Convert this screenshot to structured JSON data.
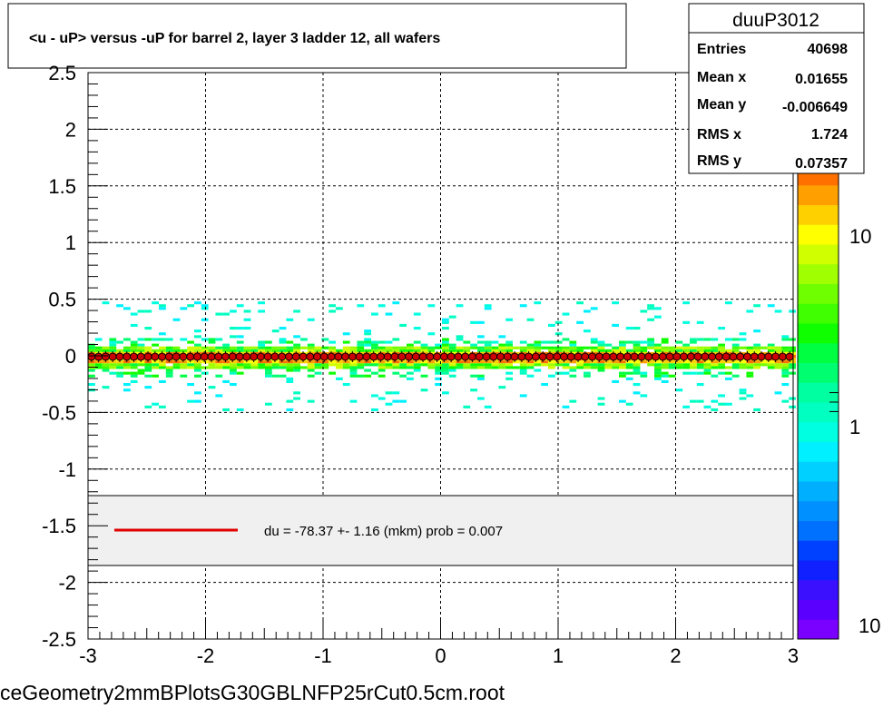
{
  "title": "<u - uP>       versus  -uP for barrel 2, layer 3 ladder 12, all wafers",
  "footer_filename": "ceGeometry2mmBPlotsG30GBLNFP25rCut0.5cm.root",
  "stats": {
    "name": "duuP3012",
    "rows": [
      {
        "label": "Entries",
        "value": "40698"
      },
      {
        "label": "Mean x",
        "value": "0.01655"
      },
      {
        "label": "Mean y",
        "value": "-0.006649"
      },
      {
        "label": "RMS x",
        "value": "1.724"
      },
      {
        "label": "RMS y",
        "value": "0.07357"
      }
    ]
  },
  "fit_legend": {
    "text": "du =  -78.37 +-  1.16 (mkm) prob = 0.007",
    "line_color": "#e00000"
  },
  "chart_data": {
    "type": "heatmap",
    "xlim": [
      -3,
      3
    ],
    "ylim": [
      -2.5,
      2.5
    ],
    "x_ticks": [
      "-3",
      "-2",
      "-1",
      "0",
      "1",
      "2",
      "3"
    ],
    "y_ticks": [
      "-2.5",
      "-2",
      "-1.5",
      "-1",
      "-0.5",
      "0",
      "0.5",
      "1",
      "1.5",
      "2",
      "2.5"
    ],
    "grid": true,
    "z_scale": "log",
    "z_labels": [
      "10",
      "1",
      "10"
    ],
    "profile_points": {
      "x_start": -2.97,
      "x_step": 0.06,
      "count": 100,
      "y": -0.0078,
      "marker_color": "#cc0000"
    },
    "band": {
      "core_halfwidth": 0.05,
      "outer_halfwidth": 0.48
    },
    "palette": [
      "#7a00ff",
      "#5a00ff",
      "#3a10ff",
      "#1020ff",
      "#0040ff",
      "#0070ff",
      "#0090ff",
      "#00b0ff",
      "#00d0ff",
      "#00f0ff",
      "#00ffe0",
      "#00ffc0",
      "#00ffa0",
      "#00ff70",
      "#00ff40",
      "#10ff00",
      "#40ff00",
      "#70ff00",
      "#a0ff00",
      "#d0ff00",
      "#ffff00",
      "#ffd000",
      "#ffa000",
      "#ff7000"
    ]
  }
}
